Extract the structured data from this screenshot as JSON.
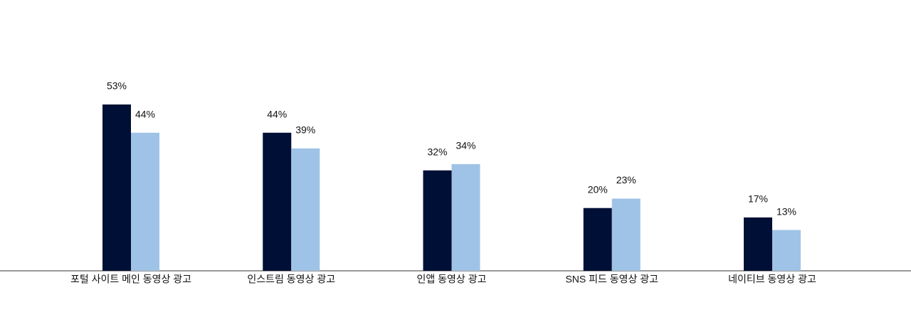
{
  "chart_data": {
    "type": "bar",
    "categories": [
      "포털 사이트 메인 동영상 광고",
      "인스트림 동영상 광고",
      "인앱 동영상 광고",
      "SNS 피드 동영상 광고",
      "네이티브 동영상 광고"
    ],
    "series": [
      {
        "color": "#000f35",
        "values": [
          53,
          44,
          32,
          20,
          17
        ],
        "value_labels": [
          "53%",
          "44%",
          "32%",
          "20%",
          "17%"
        ]
      },
      {
        "color": "#9fc3e6",
        "values": [
          44,
          39,
          34,
          23,
          13
        ],
        "value_labels": [
          "44%",
          "39%",
          "34%",
          "23%",
          "13%"
        ]
      }
    ]
  }
}
